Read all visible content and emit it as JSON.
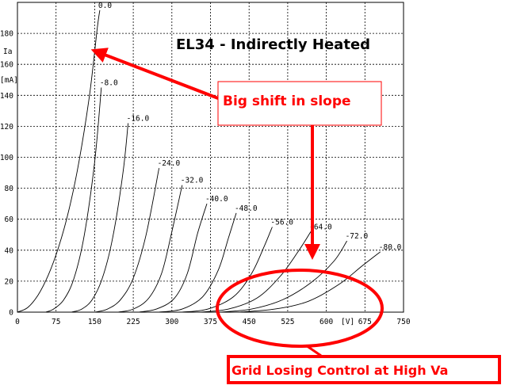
{
  "chart_data": {
    "type": "line",
    "title": "EL34 - Indirectly Heated",
    "xlabel": "[V]",
    "ylabel_top": "Ia",
    "ylabel_bottom": "[mA]",
    "xlim": [
      0,
      750
    ],
    "ylim": [
      0,
      200
    ],
    "x_ticks": [
      "0",
      "75",
      "150",
      "225",
      "300",
      "375",
      "450",
      "525",
      "600",
      "675",
      "750"
    ],
    "y_ticks": [
      "0",
      "20",
      "40",
      "60",
      "80",
      "100",
      "120",
      "140",
      "160",
      "180"
    ],
    "grid": true,
    "series": [
      {
        "name": "0.0",
        "points": [
          [
            0,
            0
          ],
          [
            20,
            3
          ],
          [
            40,
            11
          ],
          [
            60,
            24
          ],
          [
            80,
            42
          ],
          [
            100,
            66
          ],
          [
            120,
            98
          ],
          [
            140,
            140
          ],
          [
            155,
            183
          ],
          [
            160,
            195
          ]
        ]
      },
      {
        "name": "-8.0",
        "points": [
          [
            55,
            0
          ],
          [
            70,
            2
          ],
          [
            90,
            8
          ],
          [
            110,
            22
          ],
          [
            130,
            50
          ],
          [
            150,
            97
          ],
          [
            163,
            145
          ]
        ]
      },
      {
        "name": "-16.0",
        "points": [
          [
            105,
            0
          ],
          [
            125,
            2
          ],
          [
            145,
            8
          ],
          [
            165,
            22
          ],
          [
            185,
            48
          ],
          [
            205,
            90
          ],
          [
            215,
            122
          ]
        ]
      },
      {
        "name": "-24.0",
        "points": [
          [
            150,
            0
          ],
          [
            175,
            2
          ],
          [
            200,
            8
          ],
          [
            225,
            22
          ],
          [
            250,
            50
          ],
          [
            275,
            93
          ]
        ]
      },
      {
        "name": "-32.0",
        "points": [
          [
            195,
            0
          ],
          [
            225,
            2
          ],
          [
            255,
            9
          ],
          [
            280,
            25
          ],
          [
            300,
            52
          ],
          [
            320,
            82
          ]
        ]
      },
      {
        "name": "-40.0",
        "points": [
          [
            235,
            0
          ],
          [
            270,
            2
          ],
          [
            305,
            9
          ],
          [
            330,
            25
          ],
          [
            350,
            51
          ],
          [
            368,
            70
          ]
        ]
      },
      {
        "name": "-48.0",
        "points": [
          [
            275,
            0
          ],
          [
            320,
            2
          ],
          [
            360,
            10
          ],
          [
            390,
            27
          ],
          [
            410,
            48
          ],
          [
            425,
            64
          ]
        ]
      },
      {
        "name": "-56.0",
        "points": [
          [
            320,
            0
          ],
          [
            370,
            2
          ],
          [
            420,
            10
          ],
          [
            455,
            25
          ],
          [
            480,
            43
          ],
          [
            495,
            55
          ]
        ]
      },
      {
        "name": "-64.0",
        "points": [
          [
            355,
            0
          ],
          [
            410,
            2
          ],
          [
            465,
            9
          ],
          [
            510,
            23
          ],
          [
            545,
            39
          ],
          [
            570,
            52
          ]
        ]
      },
      {
        "name": "-72.0",
        "points": [
          [
            395,
            0
          ],
          [
            455,
            2
          ],
          [
            515,
            8
          ],
          [
            570,
            19
          ],
          [
            615,
            33
          ],
          [
            640,
            46
          ]
        ]
      },
      {
        "name": "-80.0",
        "points": [
          [
            430,
            0
          ],
          [
            500,
            2
          ],
          [
            565,
            7
          ],
          [
            625,
            18
          ],
          [
            670,
            30
          ],
          [
            705,
            39
          ]
        ]
      }
    ]
  },
  "annotations": {
    "slope_callout": "Big shift in slope",
    "grid_callout": "Grid Losing Control at High Va"
  },
  "colors": {
    "curve": "#000000",
    "grid": "#000000",
    "annotation": "#ff0000"
  }
}
